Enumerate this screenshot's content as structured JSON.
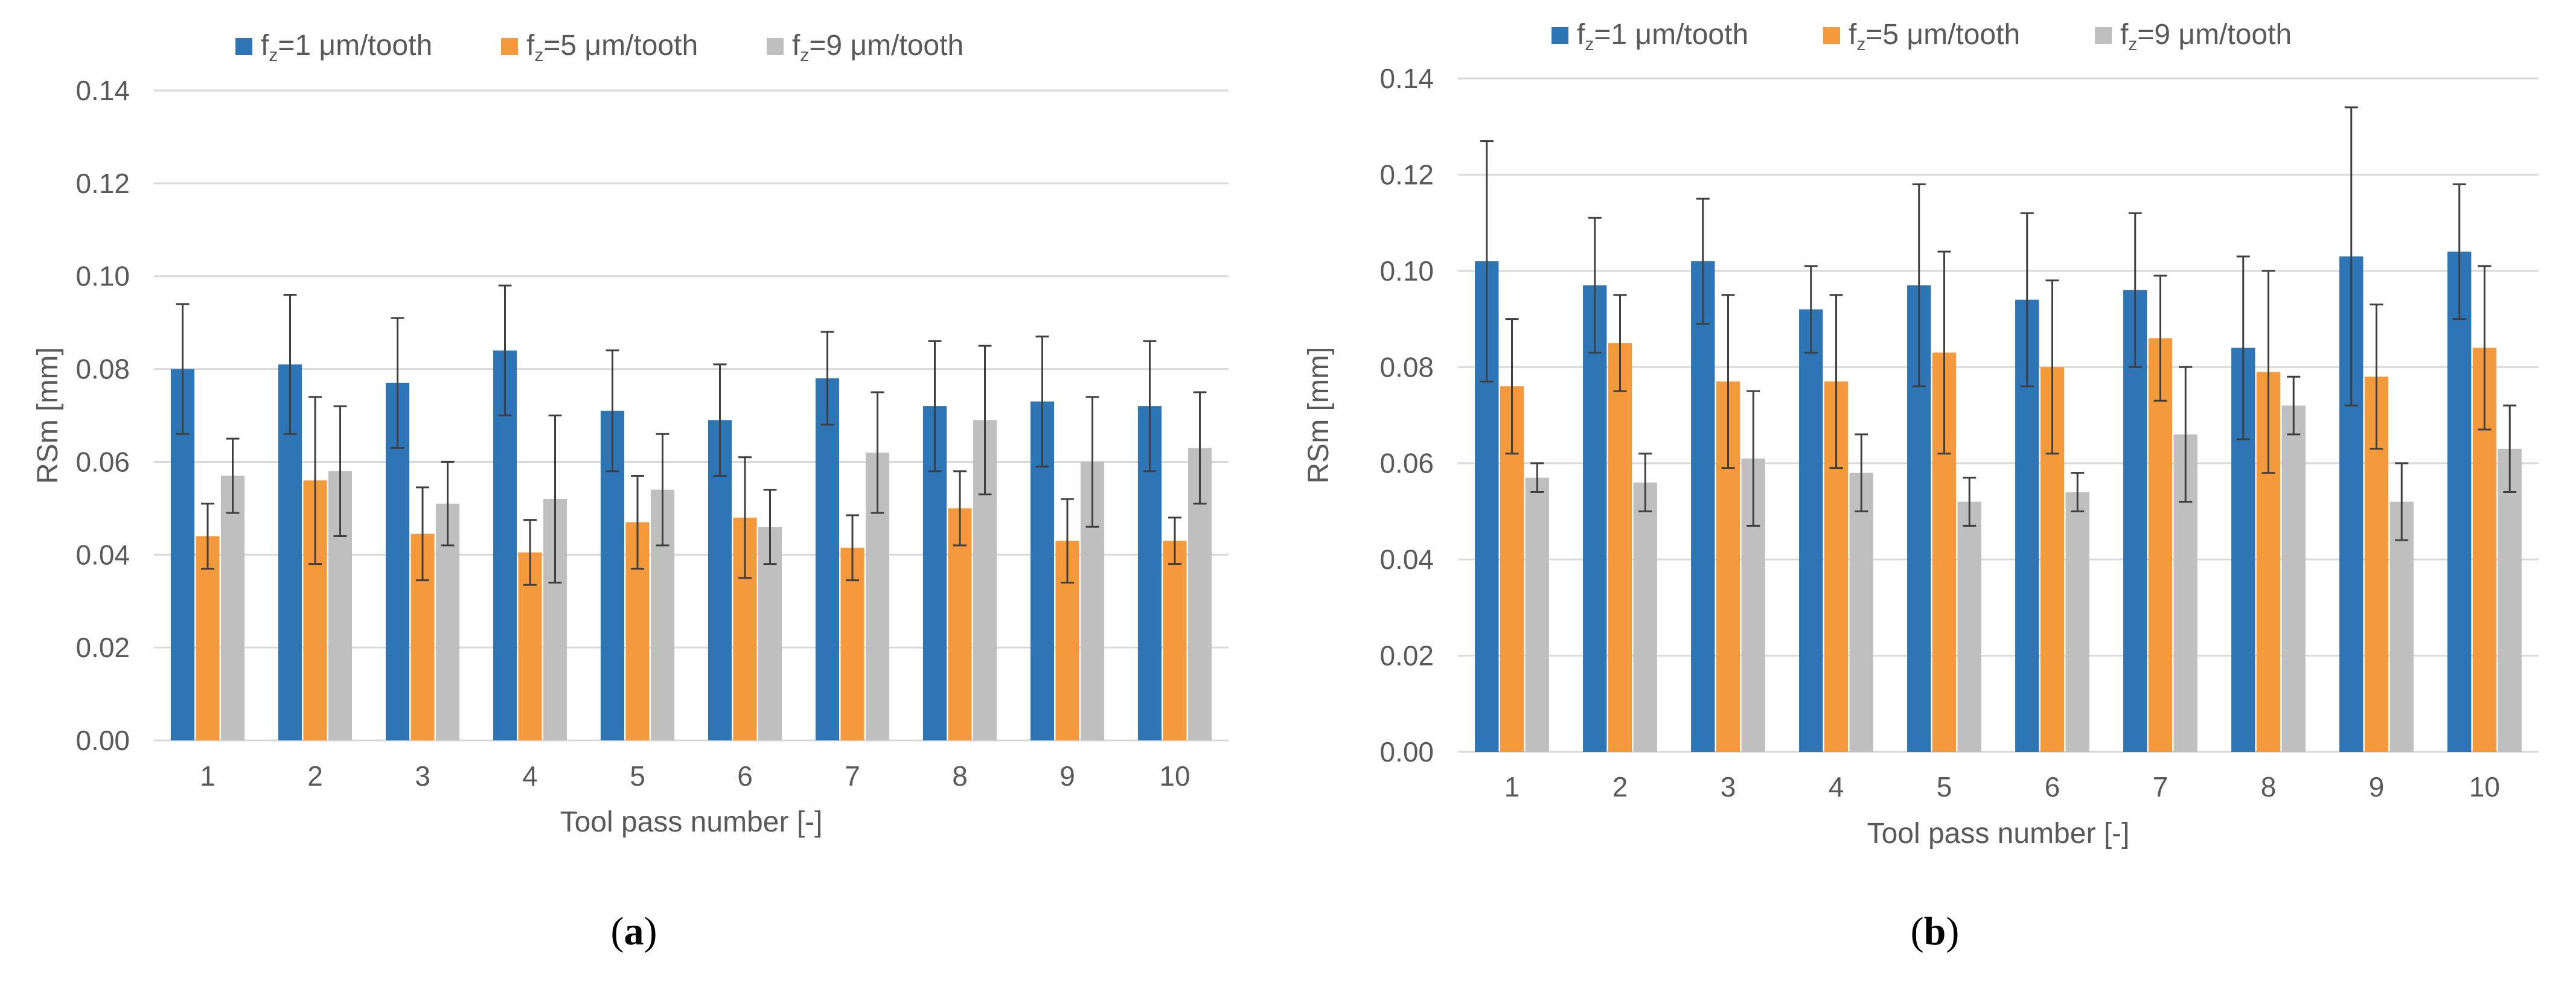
{
  "colors": {
    "series1": "#2E75B6",
    "series2": "#F59A3C",
    "series3": "#BFBFBF",
    "grid": "#D9D9D9",
    "error": "#3F3F3F"
  },
  "chart_data": [
    {
      "id": "a",
      "type": "bar",
      "caption": {
        "open": "(",
        "letter": "a",
        "close": ")"
      },
      "xlabel": "Tool pass number [-]",
      "ylabel": "RSm [mm]",
      "ylim": [
        0,
        0.14
      ],
      "yticks": [
        "0.00",
        "0.02",
        "0.04",
        "0.06",
        "0.08",
        "0.10",
        "0.12",
        "0.14"
      ],
      "categories": [
        "1",
        "2",
        "3",
        "4",
        "5",
        "6",
        "7",
        "8",
        "9",
        "10"
      ],
      "legend_position": "top",
      "series": [
        {
          "name": "fz=1 μm/tooth",
          "label_main": "f",
          "label_sub": "z",
          "label_rest": "=1 μm/tooth",
          "values": [
            0.08,
            0.081,
            0.077,
            0.084,
            0.071,
            0.069,
            0.078,
            0.072,
            0.073,
            0.072
          ],
          "errors": [
            0.014,
            0.015,
            0.014,
            0.014,
            0.013,
            0.012,
            0.01,
            0.014,
            0.014,
            0.014
          ]
        },
        {
          "name": "fz=5 μm/tooth",
          "label_main": "f",
          "label_sub": "z",
          "label_rest": "=5 μm/tooth",
          "values": [
            0.044,
            0.056,
            0.0445,
            0.0405,
            0.047,
            0.048,
            0.0415,
            0.05,
            0.043,
            0.043
          ],
          "errors": [
            0.007,
            0.018,
            0.01,
            0.007,
            0.01,
            0.013,
            0.007,
            0.008,
            0.009,
            0.005
          ]
        },
        {
          "name": "fz=9 μm/tooth",
          "label_main": "f",
          "label_sub": "z",
          "label_rest": "=9 μm/tooth",
          "values": [
            0.057,
            0.058,
            0.051,
            0.052,
            0.054,
            0.046,
            0.062,
            0.069,
            0.06,
            0.063
          ],
          "errors": [
            0.008,
            0.014,
            0.009,
            0.018,
            0.012,
            0.008,
            0.013,
            0.016,
            0.014,
            0.012
          ]
        }
      ]
    },
    {
      "id": "b",
      "type": "bar",
      "caption": {
        "open": "(",
        "letter": "b",
        "close": ")"
      },
      "xlabel": "Tool pass number [-]",
      "ylabel": "RSm [mm]",
      "ylim": [
        0,
        0.14
      ],
      "yticks": [
        "0.00",
        "0.02",
        "0.04",
        "0.06",
        "0.08",
        "0.10",
        "0.12",
        "0.14"
      ],
      "categories": [
        "1",
        "2",
        "3",
        "4",
        "5",
        "6",
        "7",
        "8",
        "9",
        "10"
      ],
      "legend_position": "top",
      "series": [
        {
          "name": "fz=1 μm/tooth",
          "label_main": "f",
          "label_sub": "z",
          "label_rest": "=1 μm/tooth",
          "values": [
            0.102,
            0.097,
            0.102,
            0.092,
            0.097,
            0.094,
            0.096,
            0.084,
            0.103,
            0.104
          ],
          "errors": [
            0.025,
            0.014,
            0.013,
            0.009,
            0.021,
            0.018,
            0.016,
            0.019,
            0.031,
            0.014
          ]
        },
        {
          "name": "fz=5 μm/tooth",
          "label_main": "f",
          "label_sub": "z",
          "label_rest": "=5 μm/tooth",
          "values": [
            0.076,
            0.085,
            0.077,
            0.077,
            0.083,
            0.08,
            0.086,
            0.079,
            0.078,
            0.084
          ],
          "errors": [
            0.014,
            0.01,
            0.018,
            0.018,
            0.021,
            0.018,
            0.013,
            0.021,
            0.015,
            0.017
          ]
        },
        {
          "name": "fz=9 μm/tooth",
          "label_main": "f",
          "label_sub": "z",
          "label_rest": "=9 μm/tooth",
          "values": [
            0.057,
            0.056,
            0.061,
            0.058,
            0.052,
            0.054,
            0.066,
            0.072,
            0.052,
            0.063
          ],
          "errors": [
            0.003,
            0.006,
            0.014,
            0.008,
            0.005,
            0.004,
            0.014,
            0.006,
            0.008,
            0.009
          ]
        }
      ]
    }
  ]
}
